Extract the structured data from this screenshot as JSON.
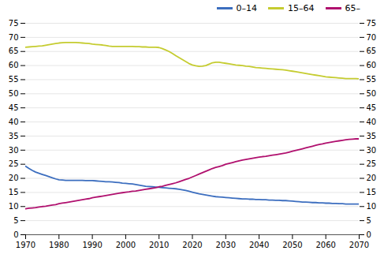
{
  "chart_data": {
    "type": "line",
    "x": [
      1970,
      1971,
      1972,
      1973,
      1974,
      1975,
      1976,
      1977,
      1978,
      1979,
      1980,
      1981,
      1982,
      1983,
      1984,
      1985,
      1986,
      1987,
      1988,
      1989,
      1990,
      1991,
      1992,
      1993,
      1994,
      1995,
      1996,
      1997,
      1998,
      1999,
      2000,
      2001,
      2002,
      2003,
      2004,
      2005,
      2006,
      2007,
      2008,
      2009,
      2010,
      2011,
      2012,
      2013,
      2014,
      2015,
      2016,
      2017,
      2018,
      2019,
      2020,
      2021,
      2022,
      2023,
      2024,
      2025,
      2026,
      2027,
      2028,
      2029,
      2030,
      2031,
      2032,
      2033,
      2034,
      2035,
      2036,
      2037,
      2038,
      2039,
      2040,
      2041,
      2042,
      2043,
      2044,
      2045,
      2046,
      2047,
      2048,
      2049,
      2050,
      2051,
      2052,
      2053,
      2054,
      2055,
      2056,
      2057,
      2058,
      2059,
      2060,
      2061,
      2062,
      2063,
      2064,
      2065,
      2066,
      2067,
      2068,
      2069,
      2070
    ],
    "series": [
      {
        "name": "0–14",
        "color": "#3c6ebf",
        "values": [
          24.3,
          23.5,
          22.8,
          22.2,
          21.8,
          21.4,
          21.0,
          20.6,
          20.2,
          19.8,
          19.5,
          19.4,
          19.3,
          19.3,
          19.3,
          19.3,
          19.3,
          19.3,
          19.2,
          19.2,
          19.2,
          19.1,
          19.0,
          18.9,
          18.8,
          18.8,
          18.7,
          18.6,
          18.5,
          18.3,
          18.2,
          18.1,
          18.0,
          17.8,
          17.6,
          17.4,
          17.2,
          17.1,
          17.0,
          16.9,
          16.8,
          16.7,
          16.6,
          16.5,
          16.4,
          16.3,
          16.1,
          15.9,
          15.7,
          15.4,
          15.1,
          14.8,
          14.5,
          14.3,
          14.1,
          13.9,
          13.7,
          13.5,
          13.4,
          13.3,
          13.2,
          13.1,
          13.0,
          12.9,
          12.8,
          12.7,
          12.7,
          12.6,
          12.6,
          12.5,
          12.5,
          12.4,
          12.4,
          12.3,
          12.3,
          12.2,
          12.2,
          12.1,
          12.1,
          12.0,
          11.9,
          11.8,
          11.7,
          11.6,
          11.6,
          11.5,
          11.4,
          11.4,
          11.3,
          11.3,
          11.2,
          11.2,
          11.1,
          11.1,
          11.0,
          11.0,
          10.9,
          10.9,
          10.9,
          10.9,
          10.9
        ]
      },
      {
        "name": "15–64",
        "color": "#c5cc30",
        "values": [
          66.5,
          66.6,
          66.7,
          66.8,
          66.9,
          67.0,
          67.2,
          67.4,
          67.6,
          67.8,
          68.0,
          68.1,
          68.2,
          68.2,
          68.2,
          68.2,
          68.1,
          68.0,
          67.9,
          67.8,
          67.6,
          67.5,
          67.4,
          67.3,
          67.1,
          66.9,
          66.8,
          66.8,
          66.8,
          66.8,
          66.8,
          66.8,
          66.8,
          66.7,
          66.7,
          66.6,
          66.6,
          66.5,
          66.5,
          66.5,
          66.4,
          66.0,
          65.5,
          65.0,
          64.3,
          63.5,
          62.8,
          62.1,
          61.4,
          60.7,
          60.2,
          59.9,
          59.7,
          59.8,
          60.0,
          60.5,
          61.0,
          61.2,
          61.2,
          61.0,
          60.8,
          60.6,
          60.4,
          60.2,
          60.1,
          60.0,
          59.8,
          59.7,
          59.5,
          59.3,
          59.2,
          59.1,
          59.0,
          58.9,
          58.8,
          58.7,
          58.6,
          58.5,
          58.4,
          58.2,
          58.0,
          57.8,
          57.6,
          57.4,
          57.2,
          57.0,
          56.8,
          56.6,
          56.4,
          56.2,
          56.0,
          55.9,
          55.8,
          55.7,
          55.6,
          55.5,
          55.4,
          55.4,
          55.4,
          55.4,
          55.3
        ]
      },
      {
        "name": "65–",
        "color": "#b0106e",
        "values": [
          9.2,
          9.4,
          9.5,
          9.6,
          9.8,
          10.0,
          10.1,
          10.3,
          10.5,
          10.7,
          11.0,
          11.2,
          11.4,
          11.6,
          11.8,
          12.0,
          12.2,
          12.4,
          12.6,
          12.8,
          13.1,
          13.3,
          13.5,
          13.7,
          13.9,
          14.1,
          14.3,
          14.5,
          14.7,
          14.9,
          15.1,
          15.2,
          15.4,
          15.5,
          15.7,
          15.9,
          16.1,
          16.3,
          16.5,
          16.7,
          17.0,
          17.2,
          17.5,
          17.8,
          18.1,
          18.4,
          18.8,
          19.2,
          19.6,
          20.0,
          20.5,
          21.0,
          21.5,
          22.0,
          22.5,
          23.0,
          23.5,
          23.9,
          24.2,
          24.5,
          25.0,
          25.3,
          25.6,
          25.9,
          26.2,
          26.5,
          26.7,
          26.9,
          27.1,
          27.3,
          27.5,
          27.7,
          27.8,
          28.0,
          28.2,
          28.4,
          28.6,
          28.8,
          29.0,
          29.3,
          29.6,
          29.9,
          30.2,
          30.5,
          30.8,
          31.1,
          31.4,
          31.7,
          32.0,
          32.2,
          32.5,
          32.7,
          32.9,
          33.1,
          33.3,
          33.5,
          33.7,
          33.8,
          33.9,
          34.0,
          34.0
        ]
      }
    ],
    "xlim": [
      1970,
      2070
    ],
    "xticks": [
      1970,
      1980,
      1990,
      2000,
      2010,
      2020,
      2030,
      2040,
      2050,
      2060,
      2070
    ],
    "ylim": [
      0,
      75
    ],
    "yticks": [
      0,
      5,
      10,
      15,
      20,
      25,
      30,
      35,
      40,
      45,
      50,
      55,
      60,
      65,
      70,
      75
    ],
    "grid": true,
    "legend": "upper right"
  }
}
